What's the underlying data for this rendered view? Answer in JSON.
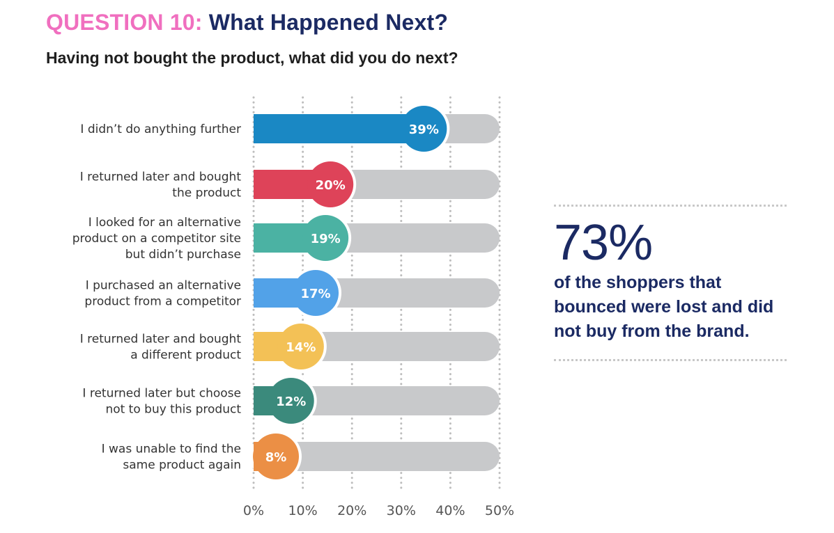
{
  "header": {
    "question_label": "QUESTION 10:",
    "question_title": "What Happened Next?",
    "subtitle": "Having not bought the product, what did you do next?"
  },
  "callout": {
    "stat": "73%",
    "text": "of the shoppers that bounced were lost and did not buy from the brand."
  },
  "colors": {
    "track": "#c8c9cb",
    "grid": "#bdbdbd",
    "title_pink": "#f06fbf",
    "navy": "#1b2a63"
  },
  "chart_data": {
    "type": "bar",
    "orientation": "horizontal",
    "title": "Having not bought the product, what did you do next?",
    "xlabel": "",
    "ylabel": "",
    "xlim": [
      0,
      50
    ],
    "grid": true,
    "x_ticks": [
      "0%",
      "10%",
      "20%",
      "30%",
      "40%",
      "50%"
    ],
    "x_tick_values": [
      0,
      10,
      20,
      30,
      40,
      50
    ],
    "categories": [
      [
        "I didn’t do anything further"
      ],
      [
        "I returned later and bought",
        "the product"
      ],
      [
        "I looked for an alternative",
        "product on a competitor site",
        "but didn’t purchase"
      ],
      [
        "I purchased an alternative",
        "product from a competitor"
      ],
      [
        "I returned later and bought",
        "a different product"
      ],
      [
        "I returned later but choose",
        "not to buy this product"
      ],
      [
        "I was unable to find the",
        "same product again"
      ]
    ],
    "values": [
      39,
      20,
      19,
      17,
      14,
      12,
      8
    ],
    "value_labels": [
      "39%",
      "20%",
      "19%",
      "17%",
      "14%",
      "12%",
      "8%"
    ],
    "bar_colors": [
      "#1a88c4",
      "#de4359",
      "#4bb2a3",
      "#52a2e8",
      "#f3c156",
      "#3b8a7c",
      "#eb8f45"
    ]
  }
}
